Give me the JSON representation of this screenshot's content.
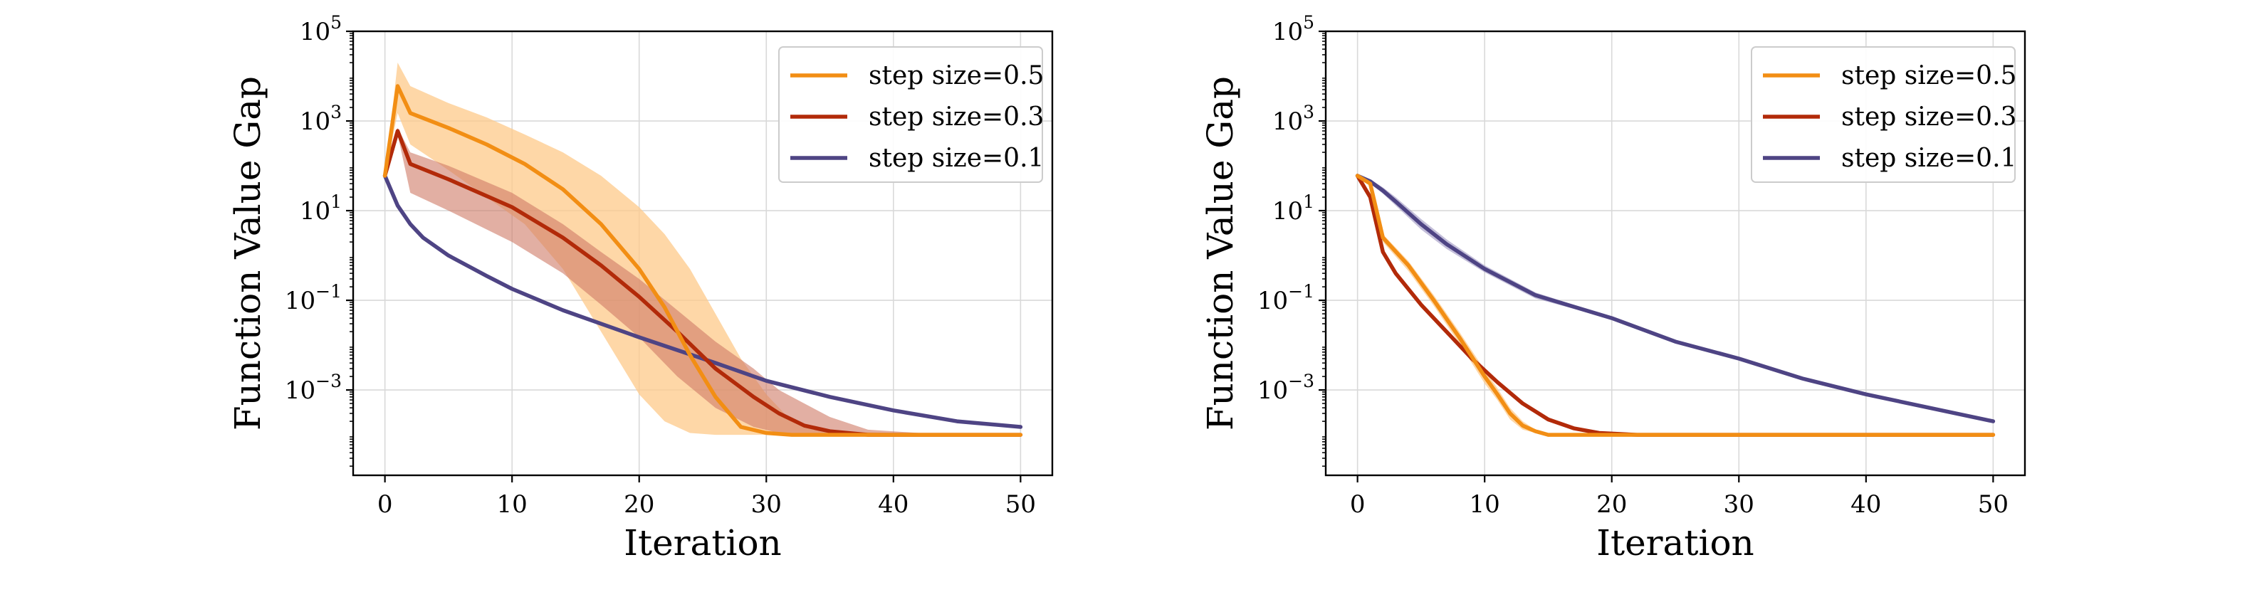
{
  "colors": {
    "orange": "#f28e14",
    "red": "#b22a09",
    "purple": "#4e4484",
    "orange_band": "#fdc98a",
    "red_band": "#cf7a66",
    "purple_band": "#9b93bf",
    "grid": "#d9d9d9"
  },
  "chart_data": [
    {
      "type": "line",
      "xlabel": "Iteration",
      "ylabel": "Function Value Gap",
      "yscale": "log",
      "xlim": [
        -2.5,
        52.5
      ],
      "ylim": [
        1.25e-05,
        100000
      ],
      "xticks": [
        0,
        10,
        20,
        30,
        40,
        50
      ],
      "yticks": [
        {
          "value": 0.001,
          "base": "10",
          "exp": "−3"
        },
        {
          "value": 0.1,
          "base": "10",
          "exp": "−1"
        },
        {
          "value": 10,
          "base": "10",
          "exp": "1"
        },
        {
          "value": 1000,
          "base": "10",
          "exp": "3"
        },
        {
          "value": 100000,
          "base": "10",
          "exp": "5"
        }
      ],
      "grid": true,
      "legend_position": "top-right",
      "series": [
        {
          "name": "step size=0.5",
          "color_key": "orange",
          "x": [
            0,
            1,
            2,
            5,
            8,
            11,
            14,
            17,
            20,
            22,
            24,
            26,
            28,
            30,
            32,
            35,
            40,
            45,
            50
          ],
          "y": [
            60,
            6000,
            1500,
            700,
            300,
            110,
            30,
            5,
            0.5,
            0.07,
            0.006,
            0.0007,
            0.00015,
            0.00011,
            0.0001,
            0.0001,
            0.0001,
            0.0001,
            0.0001
          ],
          "band_upper": [
            60,
            20000,
            6000,
            2500,
            1200,
            500,
            200,
            60,
            12,
            3,
            0.5,
            0.05,
            0.005,
            0.0008,
            0.0002,
            0.00012,
            0.00011,
            0.0001,
            0.0001
          ],
          "band_lower": [
            60,
            1500,
            300,
            80,
            20,
            5,
            0.5,
            0.02,
            0.0008,
            0.0002,
            0.00011,
            0.0001,
            0.0001,
            0.0001,
            0.0001,
            0.0001,
            0.0001,
            0.0001,
            0.0001
          ]
        },
        {
          "name": "step size=0.3",
          "color_key": "red",
          "x": [
            0,
            1,
            2,
            5,
            10,
            14,
            17,
            20,
            23,
            26,
            29,
            31,
            33,
            35,
            38,
            42,
            46,
            48,
            50
          ],
          "y": [
            60,
            600,
            110,
            50,
            12,
            2.5,
            0.6,
            0.12,
            0.02,
            0.003,
            0.0007,
            0.0003,
            0.00016,
            0.00012,
            0.0001,
            0.0001,
            0.0001,
            0.0001,
            0.0001
          ],
          "band_upper": [
            60,
            700,
            200,
            100,
            25,
            5,
            1.2,
            0.3,
            0.06,
            0.012,
            0.003,
            0.001,
            0.0005,
            0.00025,
            0.00013,
            0.00011,
            0.0001,
            0.0001,
            0.0001
          ],
          "band_lower": [
            60,
            500,
            25,
            10,
            2,
            0.4,
            0.08,
            0.015,
            0.002,
            0.0004,
            0.00015,
            0.00011,
            0.0001,
            0.0001,
            0.0001,
            0.0001,
            0.0001,
            0.0001,
            0.0001
          ]
        },
        {
          "name": "step size=0.1",
          "color_key": "purple",
          "x": [
            0,
            1,
            2,
            3,
            5,
            8,
            10,
            14,
            20,
            26,
            30,
            35,
            40,
            45,
            50
          ],
          "y": [
            60,
            13,
            5,
            2.5,
            1,
            0.35,
            0.18,
            0.06,
            0.015,
            0.004,
            0.0016,
            0.0007,
            0.00035,
            0.0002,
            0.00015
          ],
          "band_upper": [
            60,
            13,
            5,
            2.5,
            1,
            0.35,
            0.18,
            0.06,
            0.015,
            0.004,
            0.0016,
            0.0007,
            0.00035,
            0.0002,
            0.00015
          ],
          "band_lower": [
            60,
            13,
            5,
            2.5,
            1,
            0.35,
            0.18,
            0.06,
            0.015,
            0.004,
            0.0016,
            0.0007,
            0.00035,
            0.0002,
            0.00015
          ]
        }
      ]
    },
    {
      "type": "line",
      "xlabel": "Iteration",
      "ylabel": "Function Value Gap",
      "yscale": "log",
      "xlim": [
        -2.5,
        52.5
      ],
      "ylim": [
        1.25e-05,
        100000
      ],
      "xticks": [
        0,
        10,
        20,
        30,
        40,
        50
      ],
      "yticks": [
        {
          "value": 0.001,
          "base": "10",
          "exp": "−3"
        },
        {
          "value": 0.1,
          "base": "10",
          "exp": "−1"
        },
        {
          "value": 10,
          "base": "10",
          "exp": "1"
        },
        {
          "value": 1000,
          "base": "10",
          "exp": "3"
        },
        {
          "value": 100000,
          "base": "10",
          "exp": "5"
        }
      ],
      "grid": true,
      "legend_position": "top-right",
      "series": [
        {
          "name": "step size=0.5",
          "color_key": "orange",
          "x": [
            0,
            1,
            2,
            4,
            6,
            8,
            10,
            11,
            12,
            13,
            14,
            15,
            16,
            20,
            30,
            40,
            50
          ],
          "y": [
            60,
            40,
            2.5,
            0.6,
            0.1,
            0.015,
            0.002,
            0.0008,
            0.0003,
            0.00016,
            0.00012,
            0.0001,
            0.0001,
            0.0001,
            0.0001,
            0.0001,
            0.0001
          ],
          "band_upper": [
            60,
            45,
            3,
            0.75,
            0.13,
            0.02,
            0.0028,
            0.0011,
            0.0004,
            0.0002,
            0.00013,
            0.00011,
            0.0001,
            0.0001,
            0.0001,
            0.0001,
            0.0001
          ],
          "band_lower": [
            60,
            35,
            2,
            0.45,
            0.075,
            0.011,
            0.0014,
            0.0006,
            0.00022,
            0.00013,
            0.00011,
            0.0001,
            0.0001,
            0.0001,
            0.0001,
            0.0001,
            0.0001
          ]
        },
        {
          "name": "step size=0.3",
          "color_key": "red",
          "x": [
            0,
            1,
            2,
            3,
            5,
            7,
            9,
            11,
            13,
            15,
            17,
            19,
            22,
            30,
            40,
            50
          ],
          "y": [
            60,
            20,
            1.2,
            0.4,
            0.08,
            0.02,
            0.005,
            0.0015,
            0.0005,
            0.00022,
            0.00014,
            0.00011,
            0.0001,
            0.0001,
            0.0001,
            0.0001
          ],
          "band_upper": [
            60,
            20,
            1.2,
            0.4,
            0.08,
            0.02,
            0.005,
            0.0015,
            0.0005,
            0.00022,
            0.00014,
            0.00011,
            0.0001,
            0.0001,
            0.0001,
            0.0001
          ],
          "band_lower": [
            60,
            20,
            1.2,
            0.4,
            0.08,
            0.02,
            0.005,
            0.0015,
            0.0005,
            0.00022,
            0.00014,
            0.00011,
            0.0001,
            0.0001,
            0.0001,
            0.0001
          ]
        },
        {
          "name": "step size=0.1",
          "color_key": "purple",
          "x": [
            0,
            1,
            2,
            3,
            5,
            7,
            10,
            14,
            20,
            25,
            30,
            35,
            40,
            45,
            50
          ],
          "y": [
            60,
            45,
            28,
            16,
            5,
            1.8,
            0.5,
            0.13,
            0.04,
            0.012,
            0.005,
            0.0018,
            0.0008,
            0.0004,
            0.0002
          ],
          "band_upper": [
            60,
            50,
            33,
            20,
            6.5,
            2.3,
            0.6,
            0.15,
            0.042,
            0.013,
            0.0052,
            0.0019,
            0.00082,
            0.00041,
            0.0002
          ],
          "band_lower": [
            60,
            40,
            24,
            13,
            3.8,
            1.4,
            0.42,
            0.11,
            0.038,
            0.011,
            0.0048,
            0.0017,
            0.00078,
            0.00039,
            0.0002
          ]
        }
      ]
    }
  ]
}
